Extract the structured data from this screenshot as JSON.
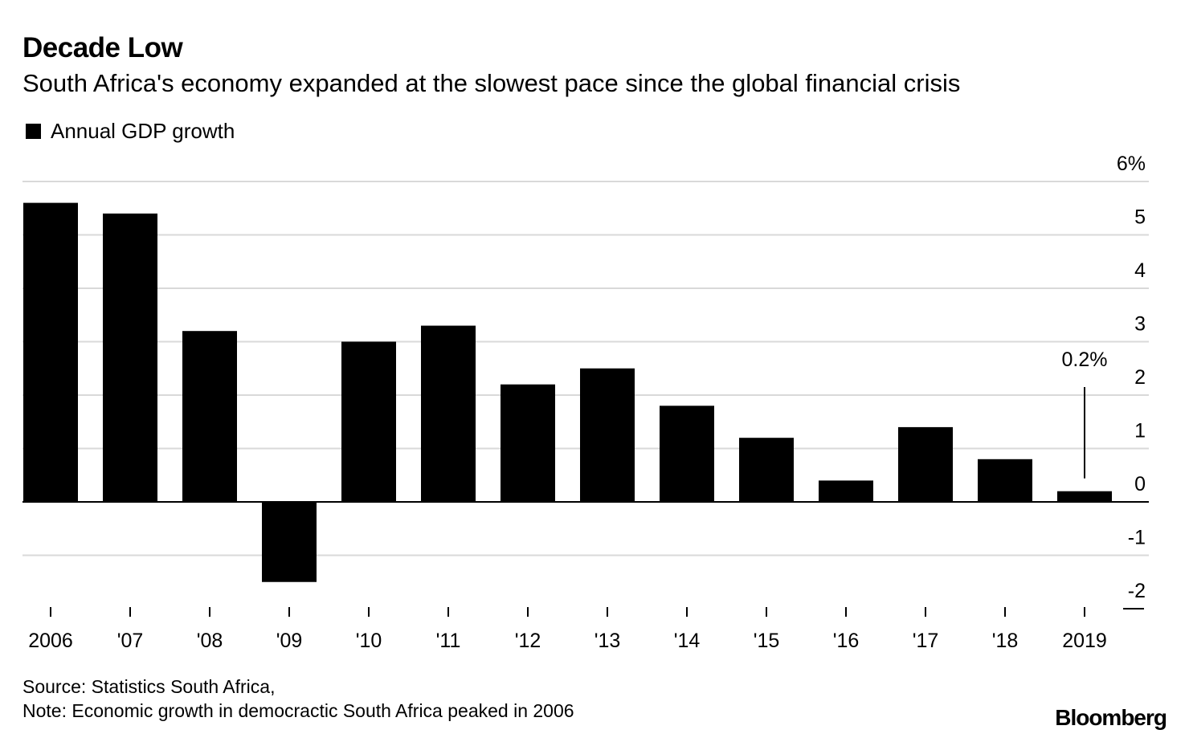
{
  "header": {
    "title": "Decade Low",
    "subtitle": "South Africa's economy expanded at the slowest pace since the global financial crisis"
  },
  "legend": {
    "label": "Annual GDP growth",
    "color": "#000000"
  },
  "chart_data": {
    "type": "bar",
    "title": "Decade Low",
    "subtitle": "South Africa's economy expanded at the slowest pace since the global financial crisis",
    "categories": [
      "2006",
      "'07",
      "'08",
      "'09",
      "'10",
      "'11",
      "'12",
      "'13",
      "'14",
      "'15",
      "'16",
      "'17",
      "'18",
      "2019"
    ],
    "series": [
      {
        "name": "Annual GDP growth",
        "values": [
          5.6,
          5.4,
          3.2,
          -1.5,
          3.0,
          3.3,
          2.2,
          2.5,
          1.8,
          1.2,
          0.4,
          1.4,
          0.8,
          0.2
        ]
      }
    ],
    "ylim": [
      -2,
      6
    ],
    "yticks": [
      {
        "value": 6,
        "label": "6%"
      },
      {
        "value": 5,
        "label": "5"
      },
      {
        "value": 4,
        "label": "4"
      },
      {
        "value": 3,
        "label": "3"
      },
      {
        "value": 2,
        "label": "2"
      },
      {
        "value": 1,
        "label": "1"
      },
      {
        "value": 0,
        "label": "0"
      },
      {
        "value": -1,
        "label": "-1"
      },
      {
        "value": -2,
        "label": "-2"
      }
    ],
    "xlabel": "",
    "ylabel": "",
    "grid": true,
    "axis_side": "right",
    "bar_color": "#000000",
    "gridline_color": "#d9d9d9",
    "annotation": {
      "category": "2019",
      "text": "0.2%"
    }
  },
  "footer": {
    "source": "Source: Statistics South Africa,",
    "note": "Note: Economic growth in democractic South Africa peaked in 2006",
    "brand": "Bloomberg"
  }
}
